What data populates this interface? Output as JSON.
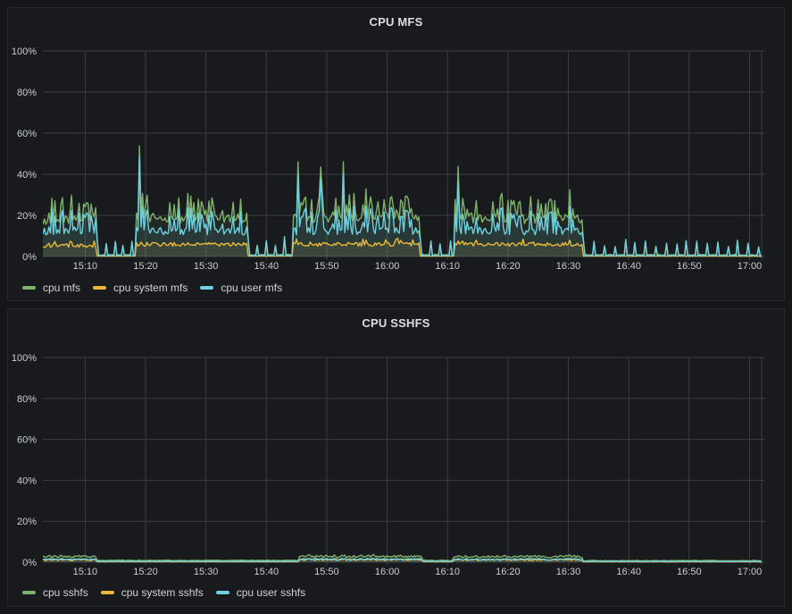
{
  "theme": {
    "page_bg": "#141619",
    "panel_bg": "#181a1e",
    "panel_border": "#25282e",
    "grid": "#3a3d43",
    "axis_text": "#c9ced3",
    "title_text": "#dcdee2",
    "legend_text": "#d0d4d8"
  },
  "panels": [
    {
      "title": "CPU MFS",
      "legend": [
        {
          "label": "cpu mfs",
          "color": "#7EB26D"
        },
        {
          "label": "cpu system mfs",
          "color": "#EAB839"
        },
        {
          "label": "cpu user mfs",
          "color": "#6ED0E0"
        }
      ]
    },
    {
      "title": "CPU SSHFS",
      "legend": [
        {
          "label": "cpu sshfs",
          "color": "#7EB26D"
        },
        {
          "label": "cpu system sshfs",
          "color": "#EAB839"
        },
        {
          "label": "cpu user sshfs",
          "color": "#6ED0E0"
        }
      ]
    }
  ],
  "chart_data": [
    {
      "type": "line",
      "title": "CPU MFS",
      "legend_position": "bottom-left",
      "grid": true,
      "fill_opacity": 0.1,
      "x_axis": {
        "unit": "time of day",
        "min_minutes": 3,
        "max_minutes": 122,
        "ticks": [
          {
            "m": 10,
            "label": "15:10"
          },
          {
            "m": 20,
            "label": "15:20"
          },
          {
            "m": 30,
            "label": "15:30"
          },
          {
            "m": 40,
            "label": "15:40"
          },
          {
            "m": 50,
            "label": "15:50"
          },
          {
            "m": 60,
            "label": "16:00"
          },
          {
            "m": 70,
            "label": "16:10"
          },
          {
            "m": 80,
            "label": "16:20"
          },
          {
            "m": 90,
            "label": "16:30"
          },
          {
            "m": 100,
            "label": "16:40"
          },
          {
            "m": 110,
            "label": "16:50"
          },
          {
            "m": 120,
            "label": "17:00"
          }
        ]
      },
      "y_axis": {
        "min": 0,
        "max": 100,
        "ticks": [
          {
            "v": 0,
            "label": "0%"
          },
          {
            "v": 20,
            "label": "20%"
          },
          {
            "v": 40,
            "label": "40%"
          },
          {
            "v": 60,
            "label": "60%"
          },
          {
            "v": 80,
            "label": "80%"
          },
          {
            "v": 100,
            "label": "100%"
          }
        ]
      },
      "series": [
        {
          "name": "cpu mfs",
          "color": "#7EB26D",
          "sum_of": [
            1,
            2
          ],
          "sum_base": 0.1,
          "sum_noise": 0.3
        },
        {
          "name": "cpu system mfs",
          "color": "#EAB839",
          "profile": [
            {
              "from": 3,
              "to": 12,
              "base": 4.5,
              "noise": 1.6,
              "spike_prob": 0.1,
              "spike_amp": 2.5
            },
            {
              "from": 12,
              "to": 18.5,
              "base": 0.15,
              "noise": 0.1
            },
            {
              "from": 18.5,
              "to": 37,
              "base": 5,
              "noise": 1.8,
              "spike_prob": 0.1,
              "spike_amp": 2.5
            },
            {
              "from": 37,
              "to": 44.5,
              "base": 0.15,
              "noise": 0.1
            },
            {
              "from": 44.5,
              "to": 65.5,
              "base": 5,
              "noise": 1.8,
              "spike_prob": 0.12,
              "spike_amp": 2.8
            },
            {
              "from": 65.5,
              "to": 71.2,
              "base": 0.15,
              "noise": 0.1
            },
            {
              "from": 71.2,
              "to": 92.5,
              "base": 5,
              "noise": 1.8,
              "spike_prob": 0.1,
              "spike_amp": 2.8
            },
            {
              "from": 92.5,
              "to": 122,
              "base": 0.12,
              "noise": 0.1
            }
          ],
          "events": [
            {
              "t": 19,
              "v": 5.5
            }
          ]
        },
        {
          "name": "cpu user mfs",
          "color": "#6ED0E0",
          "profile": [
            {
              "from": 3,
              "to": 12,
              "base": 10.5,
              "noise": 4,
              "spike_prob": 0.3,
              "spike_amp": 11
            },
            {
              "from": 12,
              "to": 18.5,
              "base": 0.3,
              "noise": 0.25,
              "spike_every": 1.4,
              "spike_amp": 8
            },
            {
              "from": 18.5,
              "to": 37,
              "base": 10.5,
              "noise": 4,
              "spike_prob": 0.3,
              "spike_amp": 11
            },
            {
              "from": 37,
              "to": 44.5,
              "base": 0.3,
              "noise": 0.25,
              "spike_every": 1.5,
              "spike_amp": 9
            },
            {
              "from": 44.5,
              "to": 65.5,
              "base": 10.5,
              "noise": 4,
              "spike_prob": 0.32,
              "spike_amp": 12
            },
            {
              "from": 65.5,
              "to": 71.2,
              "base": 0.3,
              "noise": 0.25,
              "spike_every": 1.6,
              "spike_amp": 9
            },
            {
              "from": 71.2,
              "to": 92.5,
              "base": 10.5,
              "noise": 4,
              "spike_prob": 0.3,
              "spike_amp": 12
            },
            {
              "from": 92.5,
              "to": 122,
              "base": 0.3,
              "noise": 0.2,
              "spike_every": 1.7,
              "spike_amp": 7.5
            }
          ],
          "events": [
            {
              "t": 19,
              "v": 48
            },
            {
              "t": 45.25,
              "v": 40
            },
            {
              "t": 49,
              "v": 38
            },
            {
              "t": 52.75,
              "v": 40
            },
            {
              "t": 71.75,
              "v": 36
            }
          ]
        }
      ]
    },
    {
      "type": "line",
      "title": "CPU SSHFS",
      "legend_position": "bottom-left",
      "grid": true,
      "fill_opacity": 0.1,
      "x_axis": {
        "unit": "time of day",
        "min_minutes": 3,
        "max_minutes": 122,
        "ticks": [
          {
            "m": 10,
            "label": "15:10"
          },
          {
            "m": 20,
            "label": "15:20"
          },
          {
            "m": 30,
            "label": "15:30"
          },
          {
            "m": 40,
            "label": "15:40"
          },
          {
            "m": 50,
            "label": "15:50"
          },
          {
            "m": 60,
            "label": "16:00"
          },
          {
            "m": 70,
            "label": "16:10"
          },
          {
            "m": 80,
            "label": "16:20"
          },
          {
            "m": 90,
            "label": "16:30"
          },
          {
            "m": 100,
            "label": "16:40"
          },
          {
            "m": 110,
            "label": "16:50"
          },
          {
            "m": 120,
            "label": "17:00"
          }
        ]
      },
      "y_axis": {
        "min": 0,
        "max": 100,
        "ticks": [
          {
            "v": 0,
            "label": "0%"
          },
          {
            "v": 20,
            "label": "20%"
          },
          {
            "v": 40,
            "label": "40%"
          },
          {
            "v": 60,
            "label": "60%"
          },
          {
            "v": 80,
            "label": "80%"
          },
          {
            "v": 100,
            "label": "100%"
          }
        ]
      },
      "series": [
        {
          "name": "cpu sshfs",
          "color": "#7EB26D",
          "sum_of": [
            1,
            2
          ],
          "sum_base": 0.1,
          "sum_noise": 0.25
        },
        {
          "name": "cpu system sshfs",
          "color": "#EAB839",
          "profile": [
            {
              "from": 3,
              "to": 12,
              "base": 0.7,
              "noise": 0.8
            },
            {
              "from": 12,
              "to": 45.5,
              "base": 0.15,
              "noise": 0.1
            },
            {
              "from": 45.5,
              "to": 66,
              "base": 0.8,
              "noise": 0.9
            },
            {
              "from": 66,
              "to": 71,
              "base": 0.15,
              "noise": 0.1
            },
            {
              "from": 71,
              "to": 92.5,
              "base": 0.7,
              "noise": 0.8
            },
            {
              "from": 92.5,
              "to": 122,
              "base": 0.12,
              "noise": 0.08
            }
          ]
        },
        {
          "name": "cpu user sshfs",
          "color": "#6ED0E0",
          "profile": [
            {
              "from": 3,
              "to": 12,
              "base": 0.9,
              "noise": 0.9
            },
            {
              "from": 12,
              "to": 45.5,
              "base": 0.35,
              "noise": 0.15
            },
            {
              "from": 45.5,
              "to": 66,
              "base": 0.9,
              "noise": 1.0
            },
            {
              "from": 66,
              "to": 71,
              "base": 0.35,
              "noise": 0.15
            },
            {
              "from": 71,
              "to": 92.5,
              "base": 0.9,
              "noise": 0.9
            },
            {
              "from": 92.5,
              "to": 122,
              "base": 0.3,
              "noise": 0.12
            }
          ]
        }
      ]
    }
  ]
}
